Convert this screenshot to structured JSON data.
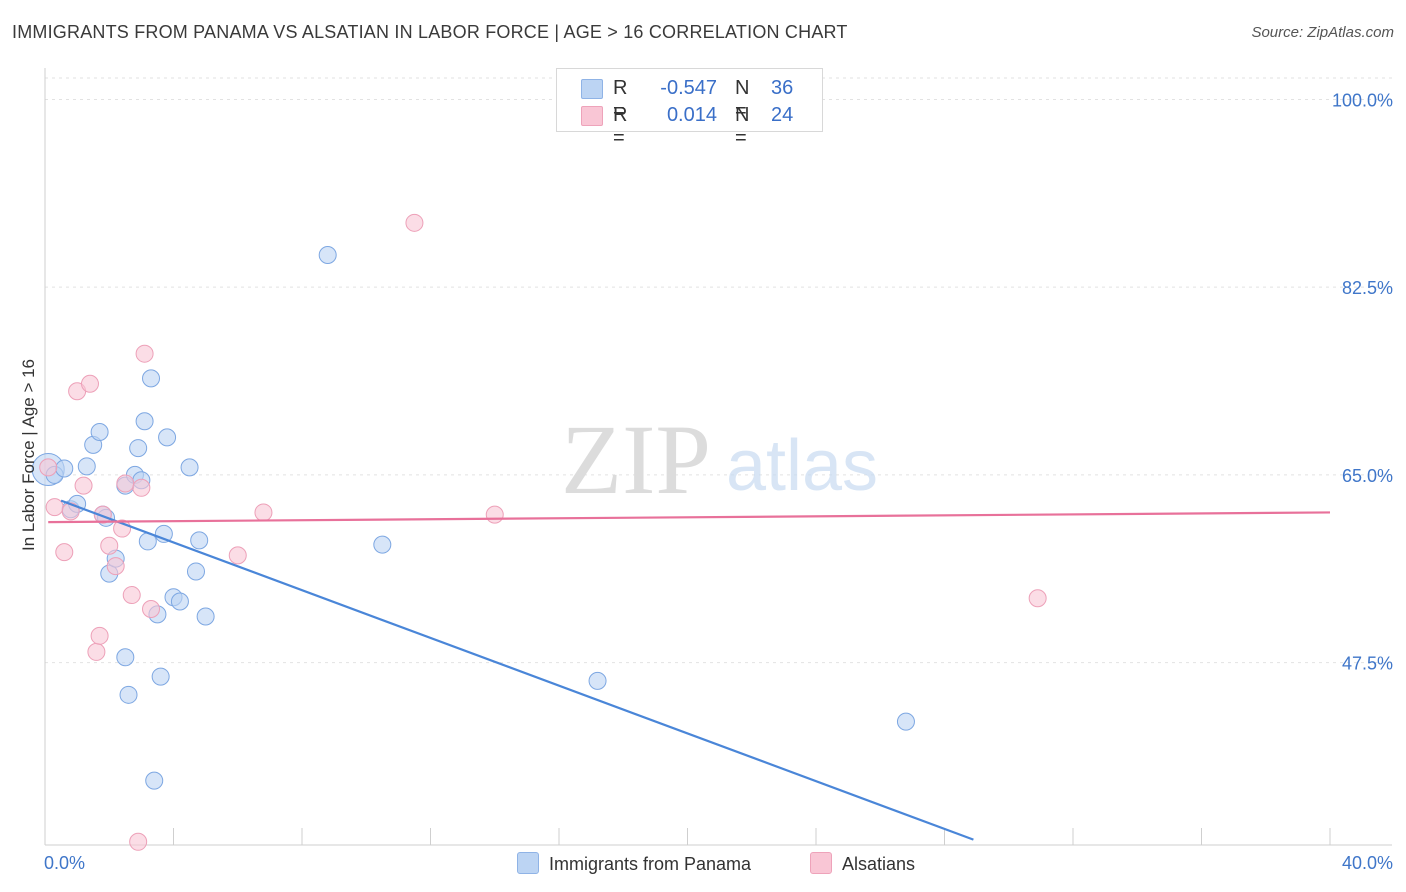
{
  "header": {
    "title": "IMMIGRANTS FROM PANAMA VS ALSATIAN IN LABOR FORCE | AGE > 16 CORRELATION CHART",
    "source": "Source: ZipAtlas.com"
  },
  "watermark": {
    "zip": "ZIP",
    "atlas": "atlas"
  },
  "legend_box": {
    "rows": [
      {
        "r_label": "R =",
        "r_value": "-0.547",
        "n_label": "N =",
        "n_value": "36",
        "color": "#a9c8f0"
      },
      {
        "r_label": "R =",
        "r_value": "0.014",
        "n_label": "N =",
        "n_value": "24",
        "color": "#f7b8cb"
      }
    ]
  },
  "bottom_legend": {
    "series_1": "Immigrants from Panama",
    "series_2": "Alsatians"
  },
  "chart_data": {
    "type": "scatter",
    "title": "IMMIGRANTS FROM PANAMA VS ALSATIAN IN LABOR FORCE | AGE > 16 CORRELATION CHART",
    "ylabel": "In Labor Force | Age > 16",
    "xlabel": "",
    "x_tick_labels": [
      "0.0%",
      "40.0%"
    ],
    "y_tick_labels": [
      "100.0%",
      "82.5%",
      "65.0%",
      "47.5%"
    ],
    "y_ticks": [
      100.0,
      82.5,
      65.0,
      47.5
    ],
    "xlim": [
      0,
      40
    ],
    "ylim": [
      30.5,
      102
    ],
    "grid": "horizontal dashed",
    "colors": {
      "panama": "#4a86d8",
      "panama_fill": "#bcd4f3",
      "alsatian": "#e8719a",
      "alsatian_fill": "#f9c6d5"
    },
    "series": [
      {
        "name": "Immigrants from Panama",
        "x": [
          0.1,
          0.3,
          0.6,
          0.8,
          1.0,
          1.3,
          1.5,
          1.7,
          1.8,
          1.9,
          2.0,
          2.2,
          2.5,
          2.5,
          2.6,
          2.8,
          2.9,
          3.0,
          3.1,
          3.2,
          3.3,
          3.4,
          3.5,
          3.6,
          3.7,
          3.8,
          4.0,
          4.2,
          4.5,
          4.7,
          4.8,
          5.0,
          8.8,
          10.5,
          17.2,
          26.8
        ],
        "y": [
          65.5,
          65.0,
          65.6,
          61.8,
          62.3,
          65.8,
          67.8,
          69.0,
          61.3,
          61.0,
          55.8,
          57.2,
          64.0,
          48.0,
          44.5,
          65.0,
          67.5,
          64.5,
          70.0,
          58.8,
          74.0,
          36.5,
          52.0,
          46.2,
          59.5,
          68.5,
          53.6,
          53.2,
          65.7,
          56.0,
          58.9,
          51.8,
          85.5,
          58.5,
          45.8,
          42.0
        ]
      },
      {
        "name": "Alsatians",
        "x": [
          0.1,
          0.3,
          0.6,
          0.8,
          1.0,
          1.2,
          1.4,
          1.6,
          1.7,
          1.8,
          2.0,
          2.2,
          2.4,
          2.5,
          2.7,
          2.9,
          3.0,
          3.1,
          3.3,
          6.0,
          6.8,
          11.5,
          14.0,
          30.9
        ],
        "y": [
          65.7,
          62.0,
          57.8,
          61.6,
          72.8,
          64.0,
          73.5,
          48.5,
          50.0,
          61.3,
          58.4,
          56.5,
          60.0,
          64.2,
          53.8,
          30.8,
          63.8,
          76.3,
          52.5,
          57.5,
          61.5,
          88.5,
          61.3,
          53.5
        ]
      }
    ],
    "trend_lines": [
      {
        "name": "Immigrants from Panama",
        "x": [
          0.5,
          28.9
        ],
        "y": [
          62.6,
          31.0
        ]
      },
      {
        "name": "Alsatians",
        "x": [
          0.1,
          40.0
        ],
        "y": [
          60.6,
          61.5
        ]
      }
    ]
  }
}
